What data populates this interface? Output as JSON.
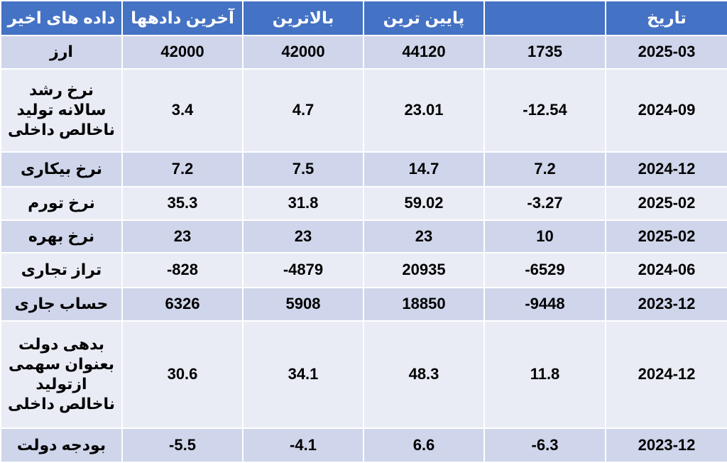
{
  "headers": {
    "recent": "داده های اخیر",
    "latest": "آخرین دادهها",
    "highest": "بالاترین",
    "lowest": "پایین ترین",
    "date": "تاریخ"
  },
  "rows": [
    {
      "indicator": "ارز",
      "recent": "42000",
      "latest": "42000",
      "highest": "44120",
      "lowest": "1735",
      "date": "2025-03"
    },
    {
      "indicator": "نرخ رشد سالانه تولید ناخالص داخلی",
      "recent": "3.4",
      "latest": "4.7",
      "highest": "23.01",
      "lowest": "-12.54",
      "date": "2024-09"
    },
    {
      "indicator": "نرخ بیکاری",
      "recent": "7.2",
      "latest": "7.5",
      "highest": "14.7",
      "lowest": "7.2",
      "date": "2024-12"
    },
    {
      "indicator": "نرخ تورم",
      "recent": "35.3",
      "latest": "31.8",
      "highest": "59.02",
      "lowest": "-3.27",
      "date": "2025-02"
    },
    {
      "indicator": "نرخ بهره",
      "recent": "23",
      "latest": "23",
      "highest": "23",
      "lowest": "10",
      "date": "2025-02"
    },
    {
      "indicator": "تراز تجاری",
      "recent": "-828",
      "latest": "-4879",
      "highest": "20935",
      "lowest": "-6529",
      "date": "2024-06"
    },
    {
      "indicator": "حساب جاری",
      "recent": "6326",
      "latest": "5908",
      "highest": "18850",
      "lowest": "-9448",
      "date": "2023-12"
    },
    {
      "indicator": "بدهی دولت بعنوان سهمی ازتولید ناخالص داخلی",
      "recent": "30.6",
      "latest": "34.1",
      "highest": "48.3",
      "lowest": "11.8",
      "date": "2024-12"
    },
    {
      "indicator": "بودجه دولت",
      "recent": "-5.5",
      "latest": "-4.1",
      "highest": "6.6",
      "lowest": "-6.3",
      "date": "2023-12"
    }
  ]
}
